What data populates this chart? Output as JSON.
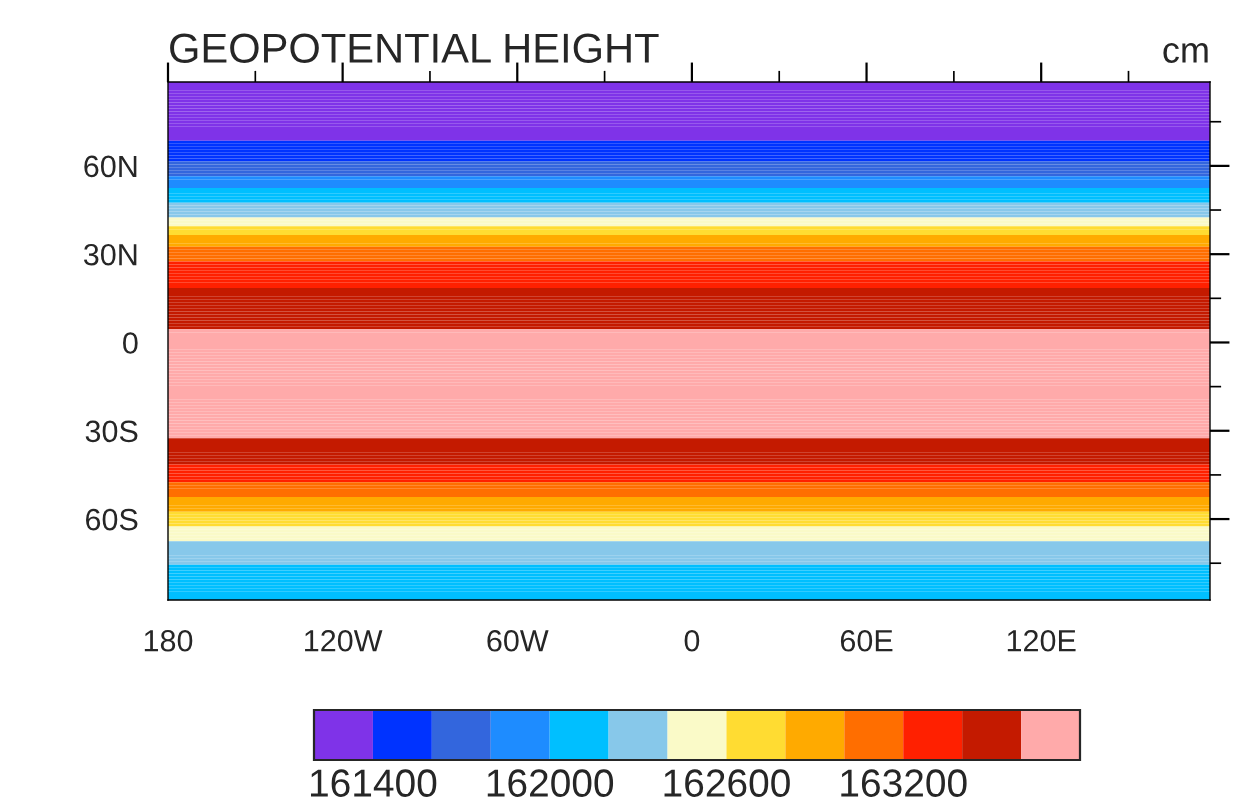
{
  "chart_data": {
    "type": "heatmap",
    "title": "GEOPOTENTIAL HEIGHT",
    "annotations": [
      "cm"
    ],
    "y_categories": [
      null,
      null,
      null,
      null,
      null,
      null,
      null,
      null,
      null,
      null,
      null,
      null,
      null,
      null,
      null,
      null,
      null,
      null,
      null,
      null,
      null,
      null,
      null,
      null,
      null,
      null,
      null,
      null,
      "60N",
      null,
      null,
      null,
      null,
      null,
      null,
      null,
      null,
      null,
      null,
      null,
      null,
      null,
      null,
      null,
      null,
      null,
      null,
      null,
      null,
      null,
      null,
      null,
      null,
      null,
      null,
      null,
      null,
      null,
      "30N",
      null,
      null,
      null,
      null,
      null,
      null,
      null,
      null,
      null,
      null,
      null,
      null,
      null,
      null,
      null,
      null,
      null,
      null,
      null,
      null,
      null,
      null,
      null,
      null,
      null,
      null,
      null,
      null,
      null,
      "0",
      null,
      null,
      null,
      null,
      null,
      null,
      null,
      null,
      null,
      null,
      null,
      null,
      null,
      null,
      null,
      null,
      null,
      null,
      null,
      null,
      null,
      null,
      null,
      null,
      null,
      null,
      null,
      null,
      null,
      "30S",
      null,
      null,
      null,
      null,
      null,
      null,
      null,
      null,
      null,
      null,
      null,
      null,
      null,
      null,
      null,
      null,
      null,
      null,
      null,
      null,
      null,
      null,
      null,
      null,
      null,
      null,
      null,
      null,
      null,
      "60S",
      null,
      null,
      null,
      null,
      null,
      null,
      null,
      null,
      null,
      null,
      null,
      null,
      null,
      null,
      null,
      null,
      null,
      null,
      null,
      null,
      null,
      null,
      null,
      null,
      null,
      null,
      null
    ],
    "cells": [
      [
        161300
      ],
      [
        161300
      ],
      [
        161300
      ],
      [
        161300
      ],
      [
        161300
      ],
      [
        161300
      ],
      [
        161300
      ],
      [
        161300
      ],
      [
        161300
      ],
      [
        161300
      ],
      [
        161300
      ],
      [
        161300
      ],
      [
        161300
      ],
      [
        161300
      ],
      [
        161300
      ],
      [
        161300
      ],
      [
        161300
      ],
      [
        161300
      ],
      [
        161300
      ],
      [
        161300
      ],
      [
        161500
      ],
      [
        161500
      ],
      [
        161500
      ],
      [
        161500
      ],
      [
        161500
      ],
      [
        161500
      ],
      [
        161500
      ],
      [
        161700
      ],
      [
        161700
      ],
      [
        161700
      ],
      [
        161700
      ],
      [
        161700
      ],
      [
        161900
      ],
      [
        161900
      ],
      [
        161900
      ],
      [
        161900
      ],
      [
        162100
      ],
      [
        162100
      ],
      [
        162100
      ],
      [
        162100
      ],
      [
        162100
      ],
      [
        162300
      ],
      [
        162300
      ],
      [
        162300
      ],
      [
        162300
      ],
      [
        162300
      ],
      [
        162500
      ],
      [
        162500
      ],
      [
        162500
      ],
      [
        162700
      ],
      [
        162700
      ],
      [
        162700
      ],
      [
        162900
      ],
      [
        162900
      ],
      [
        162900
      ],
      [
        162900
      ],
      [
        163100
      ],
      [
        163100
      ],
      [
        163100
      ],
      [
        163100
      ],
      [
        163100
      ],
      [
        163300
      ],
      [
        163300
      ],
      [
        163300
      ],
      [
        163300
      ],
      [
        163300
      ],
      [
        163300
      ],
      [
        163300
      ],
      [
        163300
      ],
      [
        163300
      ],
      [
        163500
      ],
      [
        163500
      ],
      [
        163500
      ],
      [
        163500
      ],
      [
        163500
      ],
      [
        163500
      ],
      [
        163500
      ],
      [
        163500
      ],
      [
        163500
      ],
      [
        163500
      ],
      [
        163500
      ],
      [
        163500
      ],
      [
        163500
      ],
      [
        163500
      ],
      [
        163700
      ],
      [
        163700
      ],
      [
        163700
      ],
      [
        163700
      ],
      [
        163700
      ],
      [
        163700
      ],
      [
        163700
      ],
      [
        163700
      ],
      [
        163700
      ],
      [
        163700
      ],
      [
        163700
      ],
      [
        163700
      ],
      [
        163700
      ],
      [
        163700
      ],
      [
        163700
      ],
      [
        163700
      ],
      [
        163700
      ],
      [
        163700
      ],
      [
        163700
      ],
      [
        163700
      ],
      [
        163700
      ],
      [
        163700
      ],
      [
        163700
      ],
      [
        163700
      ],
      [
        163700
      ],
      [
        163700
      ],
      [
        163700
      ],
      [
        163700
      ],
      [
        163700
      ],
      [
        163700
      ],
      [
        163700
      ],
      [
        163700
      ],
      [
        163700
      ],
      [
        163700
      ],
      [
        163700
      ],
      [
        163700
      ],
      [
        163700
      ],
      [
        163500
      ],
      [
        163500
      ],
      [
        163500
      ],
      [
        163500
      ],
      [
        163500
      ],
      [
        163500
      ],
      [
        163500
      ],
      [
        163500
      ],
      [
        163500
      ],
      [
        163300
      ],
      [
        163300
      ],
      [
        163300
      ],
      [
        163300
      ],
      [
        163300
      ],
      [
        163300
      ],
      [
        163100
      ],
      [
        163100
      ],
      [
        163100
      ],
      [
        163100
      ],
      [
        163100
      ],
      [
        162900
      ],
      [
        162900
      ],
      [
        162900
      ],
      [
        162900
      ],
      [
        162900
      ],
      [
        162700
      ],
      [
        162700
      ],
      [
        162700
      ],
      [
        162700
      ],
      [
        162700
      ],
      [
        162500
      ],
      [
        162500
      ],
      [
        162500
      ],
      [
        162500
      ],
      [
        162500
      ],
      [
        162300
      ],
      [
        162300
      ],
      [
        162300
      ],
      [
        162300
      ],
      [
        162300
      ],
      [
        162300
      ],
      [
        162300
      ],
      [
        162300
      ],
      [
        162100
      ],
      [
        162100
      ],
      [
        162100
      ],
      [
        162100
      ],
      [
        162100
      ],
      [
        162100
      ],
      [
        162100
      ],
      [
        162100
      ],
      [
        162100
      ],
      [
        162100
      ],
      [
        162100
      ],
      [
        162100
      ]
    ],
    "colors": [
      "#7f33e8",
      "#0033ff",
      "#3366dd",
      "#1e8cff",
      "#00bfff",
      "#87c8ea",
      "#fafac8",
      "#ffdc32",
      "#ffaa00",
      "#ff6e00",
      "#ff2000",
      "#c41a00",
      "#ffaaaa"
    ],
    "clim": [
      161200,
      163800
    ],
    "cticks": [
      161400,
      162000,
      162600,
      163200
    ],
    "xlim": [
      -180,
      178
    ],
    "xticks": [
      {
        "value": -180,
        "label": "180"
      },
      {
        "value": -120,
        "label": "120W"
      },
      {
        "value": -60,
        "label": "60W"
      },
      {
        "value": 0,
        "label": "0"
      },
      {
        "value": 60,
        "label": "60E"
      },
      {
        "value": 120,
        "label": "120E"
      }
    ],
    "grid": false
  }
}
